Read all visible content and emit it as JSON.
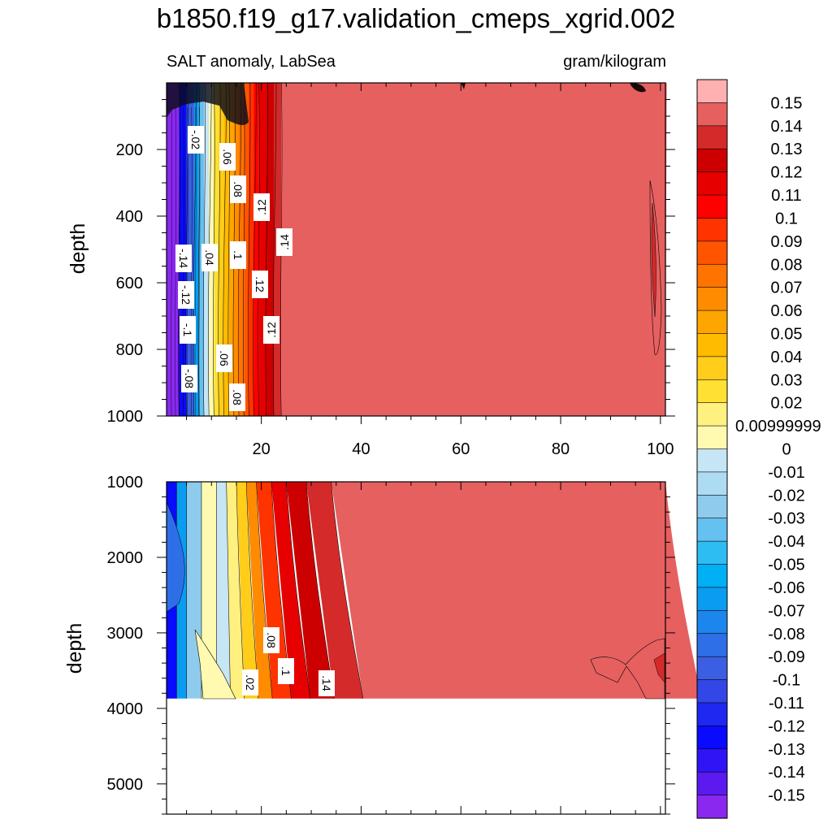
{
  "chart_data": {
    "type": "contour",
    "title": "b1850.f19_g17.validation_cmeps_xgrid.002",
    "variable_label": "SALT anomaly, LabSea",
    "units_label": "gram/kilogram",
    "ylabel": "depth",
    "colorbar": {
      "labels": [
        "0.15",
        "0.14",
        "0.13",
        "0.12",
        "0.11",
        "0.1",
        "0.09",
        "0.08",
        "0.07",
        "0.06",
        "0.05",
        "0.04",
        "0.03",
        "0.02",
        "0.00999999",
        "0",
        "-0.01",
        "-0.02",
        "-0.03",
        "-0.04",
        "-0.05",
        "-0.06",
        "-0.07",
        "-0.08",
        "-0.09",
        "-0.1",
        "-0.11",
        "-0.12",
        "-0.13",
        "-0.14",
        "-0.15"
      ],
      "colors": [
        "#ffb0b0",
        "#e66060",
        "#d42a2a",
        "#cc0000",
        "#e60000",
        "#ff0000",
        "#ff3300",
        "#ff5500",
        "#ff7300",
        "#ff8c00",
        "#ffa500",
        "#ffbb00",
        "#ffcd1a",
        "#ffe033",
        "#fff080",
        "#fffab0",
        "#c6e5f5",
        "#addbf2",
        "#8fcbec",
        "#66c0f0",
        "#2ebdf2",
        "#00b0f5",
        "#0a9cf0",
        "#1c86ec",
        "#2e6fe8",
        "#3b5ee2",
        "#3346e6",
        "#1e28f0",
        "#0a0aff",
        "#3014f5",
        "#5a1af0",
        "#8a28f0"
      ]
    },
    "panels": [
      {
        "name": "upper-0-1000m",
        "x_ticks": [
          "20",
          "40",
          "60",
          "80",
          "100"
        ],
        "xlim": [
          1,
          101
        ],
        "y_ticks": [
          "200",
          "400",
          "600",
          "800",
          "1000"
        ],
        "ylim": [
          0,
          1000
        ],
        "contour_labels": [
          "-.02",
          ".06",
          ".08",
          ".12",
          ".14",
          "-.14",
          ".04",
          ".1",
          ".12",
          "-.12",
          "-.1",
          ".12",
          ".06",
          "-.08",
          ".08"
        ],
        "columns": [
          {
            "x0": 1,
            "x1": 3.5,
            "value": -0.15
          },
          {
            "x0": 3.5,
            "x1": 5,
            "value": -0.12
          },
          {
            "x0": 5,
            "x1": 6.5,
            "value": -0.09
          },
          {
            "x0": 6.5,
            "x1": 7.5,
            "value": -0.06
          },
          {
            "x0": 7.5,
            "x1": 8.5,
            "value": -0.03
          },
          {
            "x0": 8.5,
            "x1": 9.5,
            "value": 0
          },
          {
            "x0": 9.5,
            "x1": 10.5,
            "value": 0.01
          },
          {
            "x0": 10.5,
            "x1": 11.5,
            "value": 0.03
          },
          {
            "x0": 11.5,
            "x1": 12.5,
            "value": 0.04
          },
          {
            "x0": 12.5,
            "x1": 13.5,
            "value": 0.05
          },
          {
            "x0": 13.5,
            "x1": 14.5,
            "value": 0.06
          },
          {
            "x0": 14.5,
            "x1": 15.5,
            "value": 0.07
          },
          {
            "x0": 15.5,
            "x1": 16.5,
            "value": 0.08
          },
          {
            "x0": 16.5,
            "x1": 17.5,
            "value": 0.09
          },
          {
            "x0": 17.5,
            "x1": 18.5,
            "value": 0.1
          },
          {
            "x0": 18.5,
            "x1": 19.5,
            "value": 0.11
          },
          {
            "x0": 19.5,
            "x1": 21,
            "value": 0.12
          },
          {
            "x0": 21,
            "x1": 22.5,
            "value": 0.13
          },
          {
            "x0": 22.5,
            "x1": 24,
            "value": 0.14
          },
          {
            "x0": 24,
            "x1": 101,
            "value": 0.15
          }
        ]
      },
      {
        "name": "lower-1000-5500m",
        "y_ticks": [
          "1000",
          "2000",
          "3000",
          "4000",
          "5000"
        ],
        "ylim": [
          1000,
          5400
        ],
        "bottom_depth": 3870,
        "contour_labels": [
          ".08",
          ".1",
          ".14",
          ".02"
        ],
        "columns": [
          {
            "x0": 1,
            "x1": 3,
            "value": -0.12
          },
          {
            "x0": 3,
            "x1": 5,
            "value": -0.06
          },
          {
            "x0": 5,
            "x1": 8,
            "value": -0.02
          },
          {
            "x0": 8,
            "x1": 11,
            "value": 0.01
          },
          {
            "x0": 11,
            "x1": 13,
            "value": 0
          },
          {
            "x0": 13,
            "x1": 15,
            "value": 0.02
          },
          {
            "x0": 15,
            "x1": 17,
            "value": 0.04
          },
          {
            "x0": 17,
            "x1": 19,
            "value": 0.07
          },
          {
            "x0": 19,
            "x1": 22,
            "value": 0.1
          },
          {
            "x0": 22,
            "x1": 25,
            "value": 0.12
          },
          {
            "x0": 25,
            "x1": 29,
            "value": 0.13
          },
          {
            "x0": 29,
            "x1": 34,
            "value": 0.14
          },
          {
            "x0": 34,
            "x1": 101,
            "value": 0.15
          }
        ]
      }
    ]
  }
}
